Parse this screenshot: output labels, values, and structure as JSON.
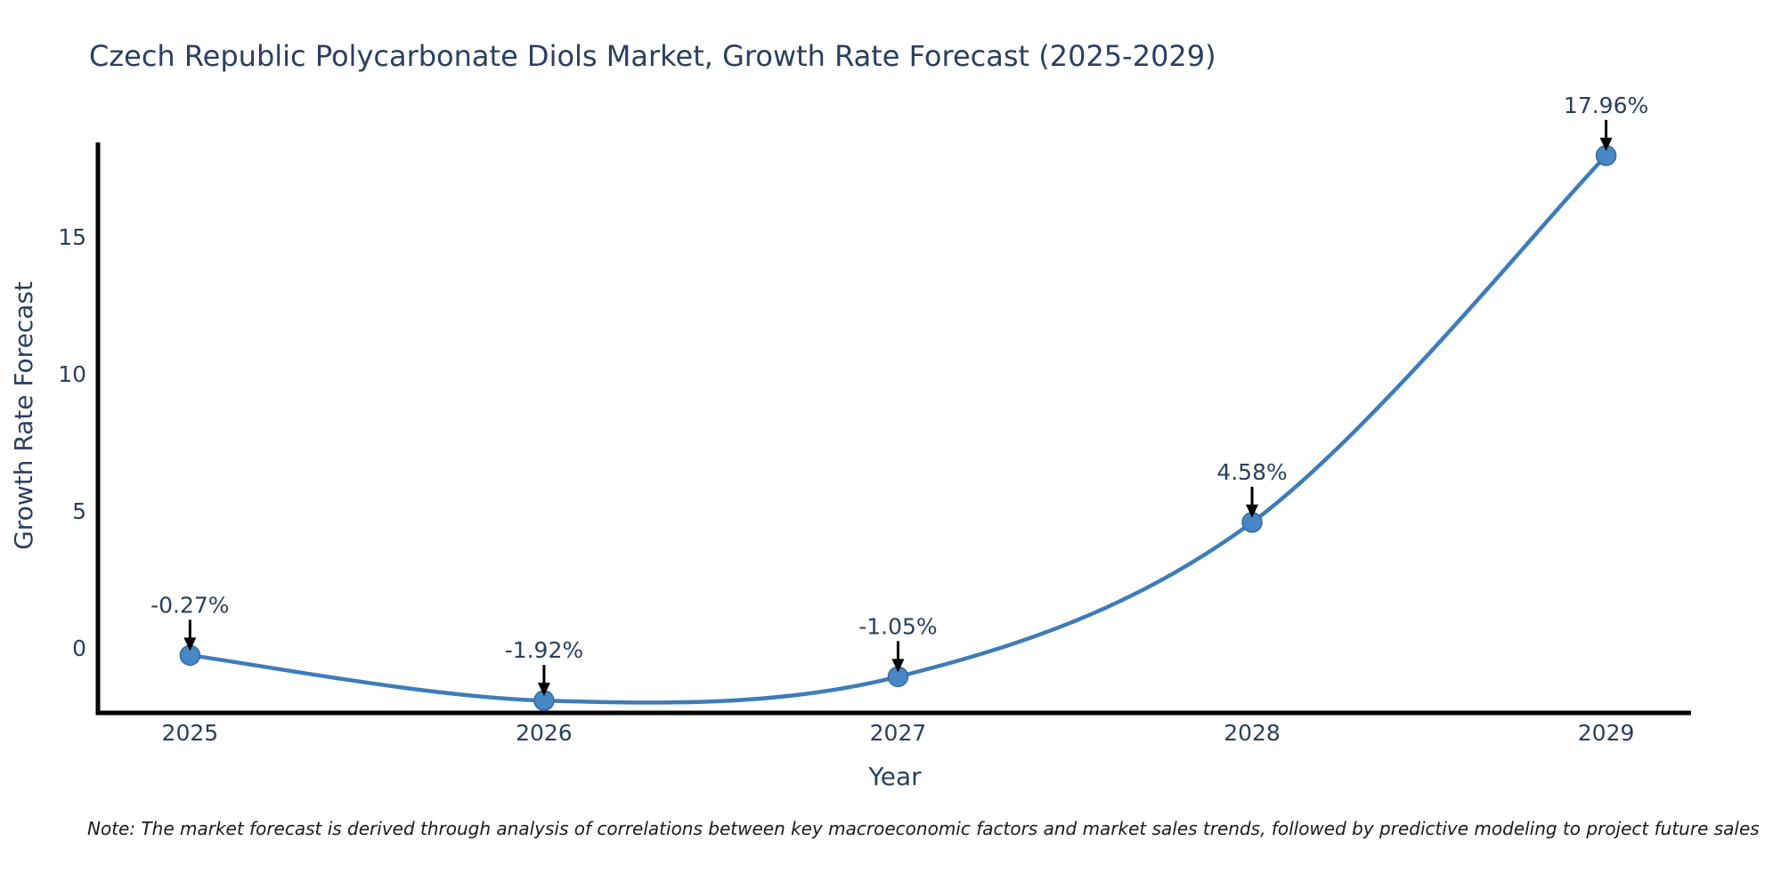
{
  "chart_data": {
    "type": "line",
    "title": "Czech Republic Polycarbonate Diols Market, Growth Rate Forecast (2025-2029)",
    "xlabel": "Year",
    "ylabel": "Growth Rate Forecast",
    "categories": [
      "2025",
      "2026",
      "2027",
      "2028",
      "2029"
    ],
    "x": [
      2025,
      2026,
      2027,
      2028,
      2029
    ],
    "values": [
      -0.27,
      -1.92,
      -1.05,
      4.58,
      17.96
    ],
    "point_labels": [
      "-0.27%",
      "-1.92%",
      "-1.05%",
      "4.58%",
      "17.96%"
    ],
    "yticks": [
      0,
      5,
      10,
      15
    ],
    "ylim": [
      -2.37,
      18.44
    ],
    "xlim": [
      2024.74,
      2029.24
    ],
    "grid": false,
    "legend": "none",
    "line_shape": "spline",
    "colors": {
      "line": "#3d7cb8",
      "marker": "#4887c5",
      "marker_edge": "#36699c",
      "text": "#2a3f5f",
      "arrow": "#000000",
      "axis": "#000000",
      "background": "#ffffff"
    }
  },
  "note": "Note: The market forecast is derived through analysis of correlations between key macroeconomic factors and market sales trends, followed by predictive modeling to project future sales"
}
